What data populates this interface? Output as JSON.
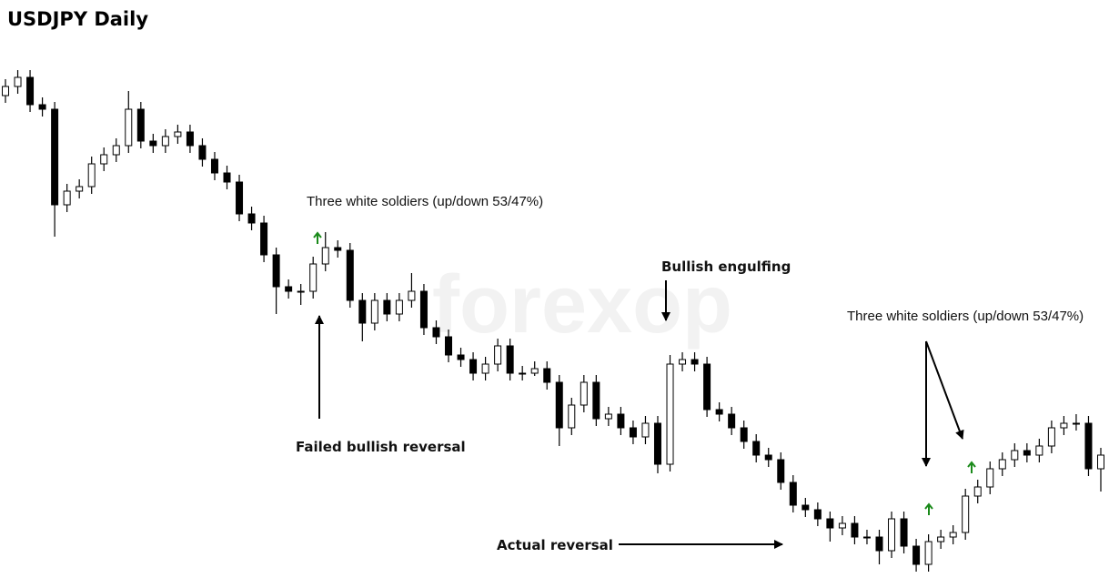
{
  "chart_data": {
    "type": "candlestick",
    "title": "USDJPY Daily",
    "watermark": "forexop",
    "up_color": "#ffffff",
    "down_color": "#000000",
    "wick_color": "#000000",
    "ylim": [
      0,
      600
    ],
    "open": [
      535,
      545,
      555,
      525,
      520,
      415,
      430,
      435,
      460,
      470,
      480,
      520,
      485,
      480,
      490,
      495,
      480,
      465,
      450,
      440,
      405,
      395,
      360,
      325,
      320,
      320,
      350,
      368,
      365,
      310,
      285,
      310,
      295,
      310,
      320,
      280,
      270,
      250,
      245,
      230,
      240,
      260,
      230,
      230,
      235,
      220,
      170,
      195,
      220,
      180,
      185,
      170,
      160,
      175,
      130,
      240,
      245,
      240,
      190,
      185,
      170,
      155,
      140,
      135,
      110,
      85,
      80,
      70,
      60,
      65,
      50,
      50,
      35,
      70,
      40,
      20,
      45,
      50,
      55,
      95,
      105,
      125,
      135,
      145,
      140,
      150,
      170,
      175,
      175,
      125
    ],
    "high": [
      553,
      563,
      563,
      533,
      528,
      438,
      443,
      468,
      478,
      488,
      540,
      528,
      493,
      498,
      503,
      503,
      488,
      473,
      458,
      448,
      413,
      403,
      368,
      333,
      328,
      358,
      385,
      376,
      373,
      318,
      318,
      318,
      318,
      340,
      328,
      288,
      278,
      258,
      253,
      248,
      268,
      268,
      238,
      243,
      243,
      228,
      203,
      228,
      228,
      193,
      193,
      178,
      183,
      183,
      250,
      253,
      253,
      248,
      198,
      193,
      178,
      163,
      148,
      143,
      118,
      93,
      88,
      78,
      73,
      73,
      58,
      58,
      78,
      78,
      48,
      53,
      58,
      63,
      103,
      113,
      133,
      143,
      153,
      153,
      158,
      178,
      183,
      185,
      183,
      148
    ],
    "low": [
      527,
      537,
      517,
      512,
      380,
      407,
      422,
      427,
      452,
      462,
      472,
      477,
      472,
      472,
      482,
      472,
      457,
      442,
      432,
      397,
      387,
      352,
      295,
      312,
      305,
      312,
      342,
      357,
      302,
      265,
      277,
      287,
      287,
      302,
      272,
      262,
      242,
      237,
      222,
      222,
      232,
      222,
      222,
      227,
      212,
      150,
      162,
      187,
      172,
      172,
      162,
      152,
      152,
      120,
      122,
      232,
      232,
      182,
      177,
      162,
      147,
      132,
      127,
      102,
      77,
      72,
      62,
      45,
      52,
      42,
      42,
      20,
      27,
      32,
      12,
      12,
      37,
      42,
      47,
      87,
      97,
      117,
      127,
      132,
      132,
      142,
      162,
      167,
      117,
      100
    ],
    "close": [
      545,
      555,
      525,
      520,
      415,
      430,
      435,
      460,
      470,
      480,
      520,
      485,
      480,
      490,
      495,
      480,
      465,
      450,
      440,
      405,
      395,
      360,
      325,
      320,
      320,
      350,
      368,
      365,
      310,
      285,
      310,
      295,
      310,
      320,
      280,
      270,
      250,
      245,
      230,
      240,
      260,
      230,
      230,
      235,
      220,
      170,
      195,
      220,
      180,
      185,
      170,
      160,
      175,
      130,
      240,
      245,
      240,
      190,
      185,
      170,
      155,
      140,
      135,
      110,
      85,
      80,
      70,
      60,
      65,
      50,
      50,
      35,
      70,
      40,
      20,
      45,
      50,
      55,
      95,
      105,
      125,
      135,
      145,
      140,
      150,
      170,
      175,
      175,
      125,
      140
    ],
    "annotations": [
      "Three white soldiers (up/down 53/47%)",
      "Bullish engulfing",
      "Three white soldiers (up/down 53/47%)",
      "Failed bullish reversal",
      "Actual reversal"
    ]
  }
}
